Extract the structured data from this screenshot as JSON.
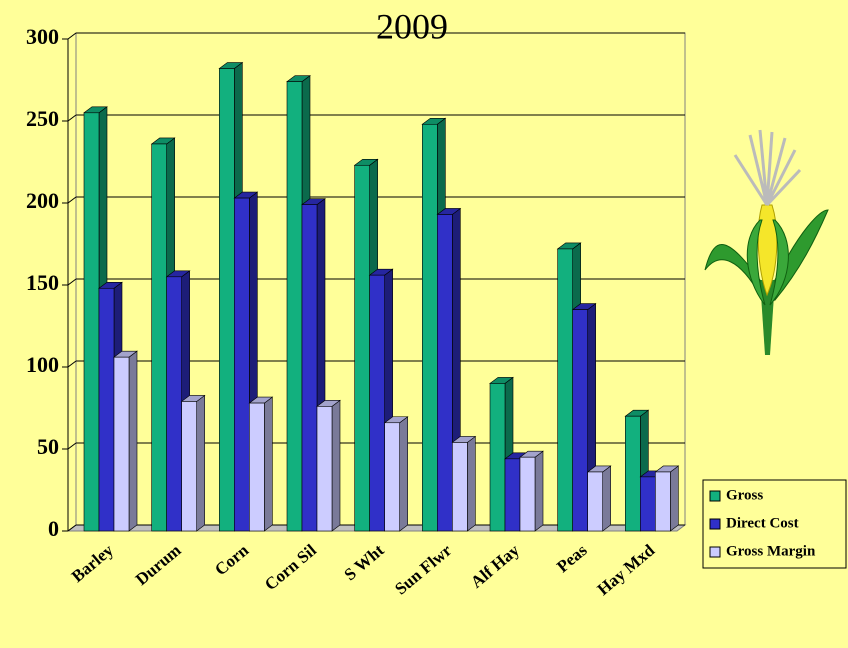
{
  "chart_data": {
    "type": "bar3d",
    "title": "2009",
    "categories": [
      "Barley",
      "Durum",
      "Corn",
      "Corn Sil",
      "S Wht",
      "Sun Flwr",
      "Alf Hay",
      "Peas",
      "Hay Mxd"
    ],
    "series": [
      {
        "name": "Gross",
        "color": "#12b07e",
        "values": [
          255,
          236,
          282,
          274,
          223,
          248,
          90,
          172,
          70
        ]
      },
      {
        "name": "Direct Cost",
        "color": "#3030c8",
        "values": [
          148,
          155,
          203,
          199,
          156,
          193,
          44,
          135,
          33
        ]
      },
      {
        "name": "Gross Margin",
        "color": "#ccccff",
        "values": [
          106,
          79,
          78,
          76,
          66,
          54,
          45,
          36,
          36
        ]
      }
    ],
    "ylim": [
      0,
      300
    ],
    "yticks": [
      0,
      50,
      100,
      150,
      200,
      250,
      300
    ],
    "grid": true
  }
}
